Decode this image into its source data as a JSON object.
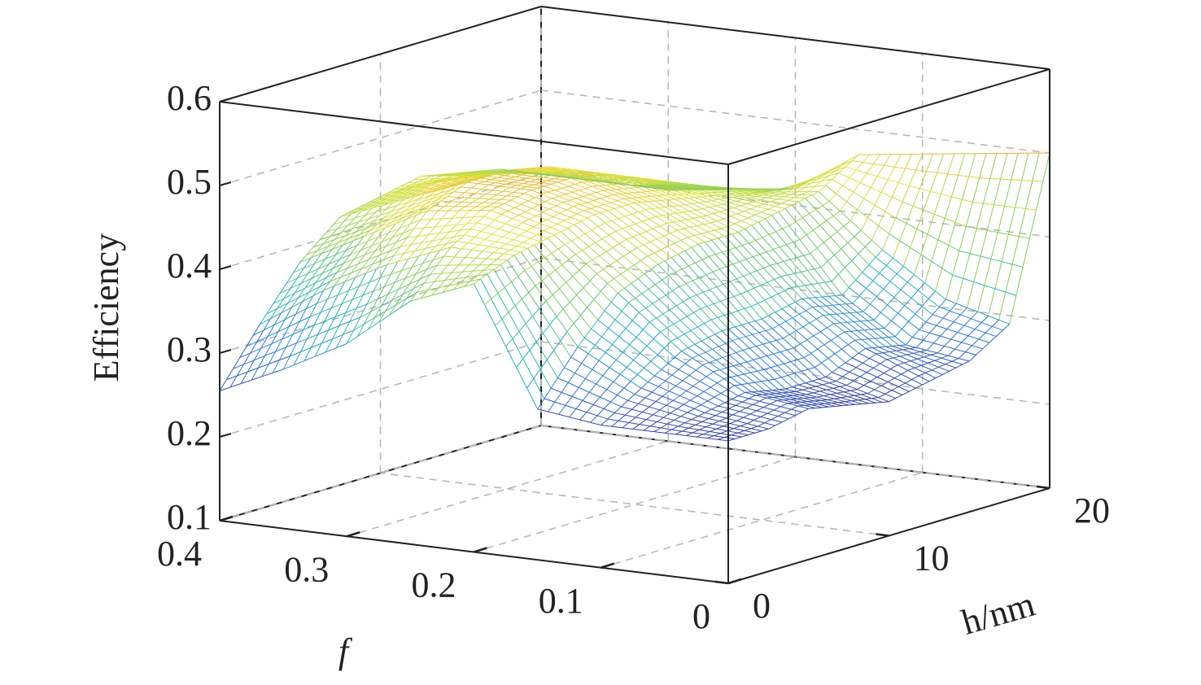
{
  "chart_data": {
    "type": "surface",
    "zlabel": "Efficiency",
    "xlabel": "f",
    "ylabel": "h/nm",
    "x": [
      0,
      0.05,
      0.1,
      0.15,
      0.2,
      0.25,
      0.3,
      0.35,
      0.4
    ],
    "y": [
      0,
      2.5,
      5,
      7.5,
      10,
      12.5,
      15,
      17.5,
      20
    ],
    "z": [
      [
        0.27,
        0.27,
        0.28,
        0.27,
        0.26,
        0.27,
        0.28,
        0.31,
        0.5
      ],
      [
        0.27,
        0.28,
        0.29,
        0.28,
        0.28,
        0.3,
        0.29,
        0.33,
        0.49
      ],
      [
        0.27,
        0.3,
        0.33,
        0.34,
        0.34,
        0.35,
        0.34,
        0.38,
        0.48
      ],
      [
        0.28,
        0.34,
        0.39,
        0.41,
        0.42,
        0.42,
        0.43,
        0.44,
        0.47
      ],
      [
        0.42,
        0.44,
        0.45,
        0.46,
        0.46,
        0.45,
        0.44,
        0.43,
        0.42
      ],
      [
        0.39,
        0.44,
        0.47,
        0.48,
        0.48,
        0.47,
        0.45,
        0.43,
        0.41
      ],
      [
        0.33,
        0.41,
        0.46,
        0.48,
        0.48,
        0.47,
        0.45,
        0.42,
        0.4
      ],
      [
        0.29,
        0.37,
        0.42,
        0.45,
        0.46,
        0.45,
        0.44,
        0.42,
        0.4
      ],
      [
        0.255,
        0.32,
        0.38,
        0.42,
        0.43,
        0.44,
        0.43,
        0.42,
        0.4
      ]
    ],
    "xlim": [
      0,
      0.4
    ],
    "ylim": [
      0,
      20
    ],
    "zlim": [
      0.1,
      0.6
    ],
    "xticks": [
      0,
      0.1,
      0.2,
      0.3,
      0.4
    ],
    "yticks": [
      0,
      10,
      20
    ],
    "zticks": [
      0.1,
      0.2,
      0.3,
      0.4,
      0.5,
      0.6
    ],
    "grid": true,
    "colormap": [
      "#3b2a98",
      "#2f78e0",
      "#1fb8c0",
      "#7fcc5c",
      "#e6e43a",
      "#f0a032"
    ]
  }
}
